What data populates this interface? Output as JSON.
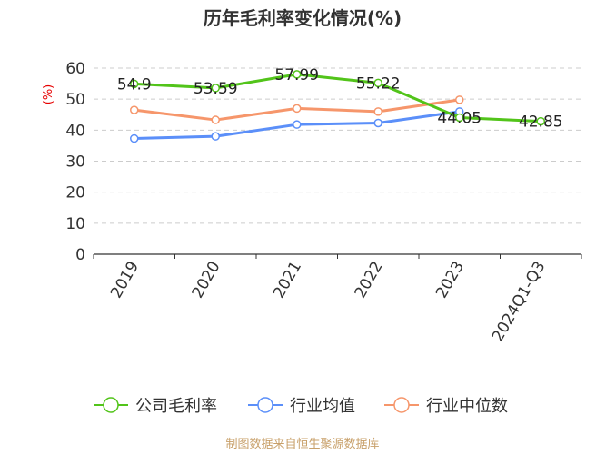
{
  "chart_data": {
    "type": "line",
    "title": "历年毛利率变化情况(%)",
    "ylabel": "(%)",
    "ylim": [
      0,
      60
    ],
    "yticks": [
      0,
      10,
      20,
      30,
      40,
      50,
      60
    ],
    "grid": true,
    "legend_position": "bottom",
    "categories": [
      "2019",
      "2020",
      "2021",
      "2022",
      "2023",
      "2024Q1-Q3"
    ],
    "series": [
      {
        "name": "公司毛利率",
        "color": "#52c41a",
        "values": [
          54.9,
          53.59,
          57.99,
          55.22,
          44.05,
          42.85
        ],
        "labels": [
          "54.9",
          "53.59",
          "57.99",
          "55.22",
          "44.05",
          "42.85"
        ]
      },
      {
        "name": "行业均值",
        "color": "#5b8ff9",
        "values": [
          37.3,
          38.0,
          41.8,
          42.3,
          46.0,
          null
        ]
      },
      {
        "name": "行业中位数",
        "color": "#f6966b",
        "values": [
          46.5,
          43.3,
          47.0,
          46.0,
          49.8,
          null
        ]
      }
    ],
    "source": "制图数据来自恒生聚源数据库"
  }
}
